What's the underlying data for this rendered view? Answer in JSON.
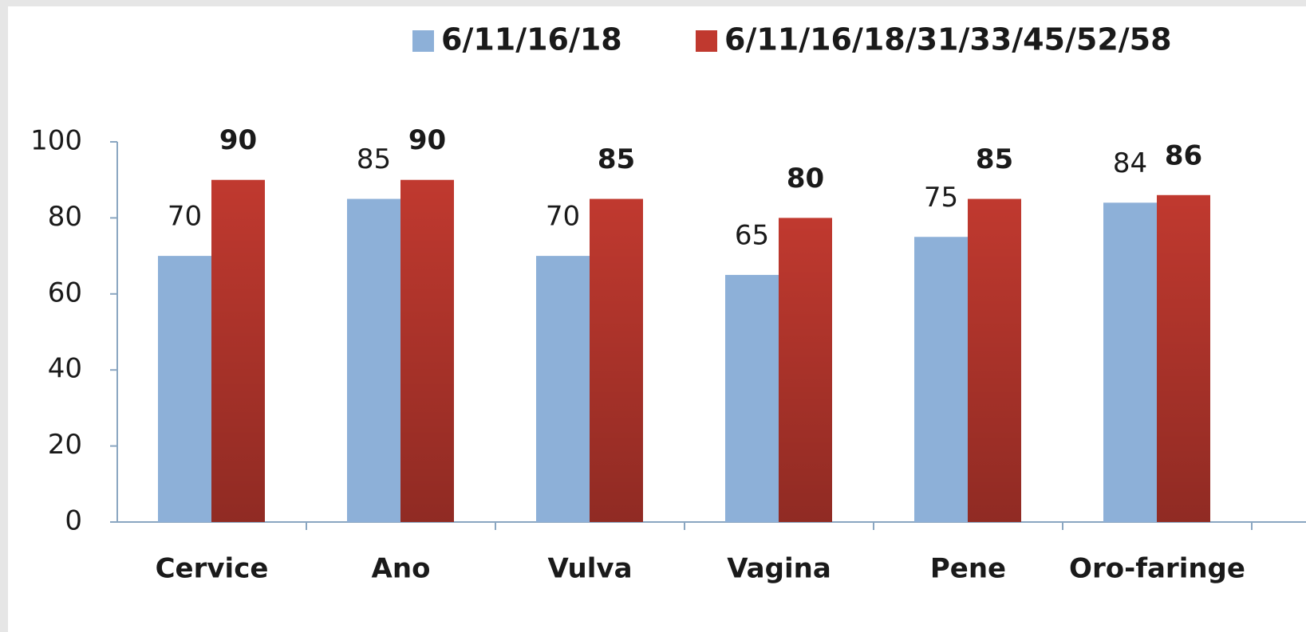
{
  "chart_data": {
    "type": "bar",
    "categories": [
      "Cervice",
      "Ano",
      "Vulva",
      "Vagina",
      "Pene",
      "Oro-faringe"
    ],
    "series": [
      {
        "name": "6/11/16/18",
        "color": "#8db0d8",
        "values": [
          70,
          85,
          70,
          65,
          75,
          84
        ]
      },
      {
        "name": "6/11/16/18/31/33/45/52/58",
        "color": "#c0392f",
        "values": [
          90,
          90,
          85,
          80,
          85,
          86
        ]
      }
    ],
    "ylim": [
      0,
      100
    ],
    "yticks": [
      0,
      20,
      40,
      60,
      80,
      100
    ],
    "grid": false,
    "legend": "top"
  }
}
